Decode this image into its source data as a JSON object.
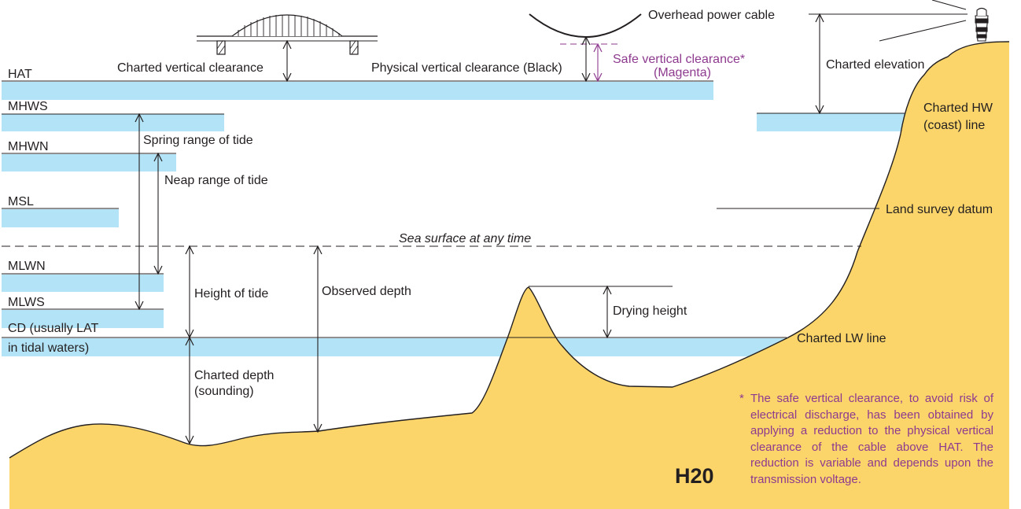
{
  "colors": {
    "water": "#b3e3f6",
    "land": "#fbd56a",
    "ink": "#231f20",
    "magenta": "#8e3a8f"
  },
  "levels": {
    "hat": "HAT",
    "mhws": "MHWS",
    "mhwn": "MHWN",
    "msl": "MSL",
    "mlwn": "MLWN",
    "mlws": "MLWS",
    "cd_line1": "CD (usually LAT",
    "cd_line2": "in tidal waters)"
  },
  "labels": {
    "charted_vertical_clearance": "Charted vertical clearance",
    "physical_vertical_clearance": "Physical vertical clearance (Black)",
    "safe_vertical_clearance_line1": "Safe vertical clearance*",
    "safe_vertical_clearance_line2": "(Magenta)",
    "overhead_power_cable": "Overhead power cable",
    "charted_elevation": "Charted elevation",
    "charted_hw_line1": "Charted HW",
    "charted_hw_line2": "(coast) line",
    "land_survey_datum": "Land survey datum",
    "spring_range": "Spring range of tide",
    "neap_range": "Neap range of tide",
    "sea_surface": "Sea surface at any time",
    "height_of_tide": "Height of tide",
    "observed_depth": "Observed depth",
    "drying_height": "Drying height",
    "charted_lw_line": "Charted LW line",
    "charted_depth_line1": "Charted depth",
    "charted_depth_line2": "(sounding)"
  },
  "footnote": {
    "marker": "*",
    "text": "The safe vertical clearance, to avoid risk of electrical discharge, has been obtained by applying a reduction to the physical vertical clearance of the cable above HAT. The reduction is variable and depends upon the transmission voltage."
  },
  "figure_code": "H20"
}
